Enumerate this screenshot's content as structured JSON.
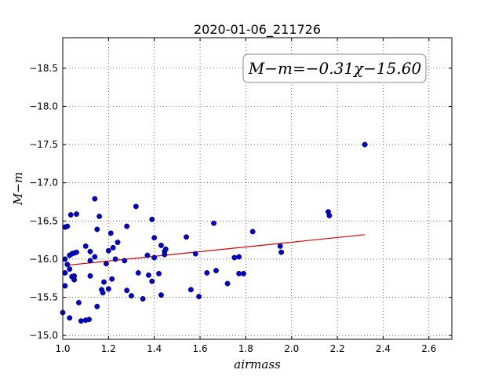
{
  "chart_data": {
    "type": "scatter",
    "title": "2020-01-06_211726",
    "xlabel": "airmass",
    "ylabel": "M−m",
    "xlim": [
      1.0,
      2.7
    ],
    "ylim": [
      -18.9,
      -14.95
    ],
    "y_inverted": true,
    "grid": true,
    "grid_style": "dotted",
    "x_ticks": [
      1.0,
      1.2,
      1.4,
      1.6,
      1.8,
      2.0,
      2.2,
      2.4,
      2.6
    ],
    "x_tick_labels": [
      "1.0",
      "1.2",
      "1.4",
      "1.6",
      "1.8",
      "2.0",
      "2.2",
      "2.4",
      "2.6"
    ],
    "y_ticks": [
      -15.0,
      -15.5,
      -16.0,
      -16.5,
      -17.0,
      -17.5,
      -18.0,
      -18.5
    ],
    "y_tick_labels": [
      "−15.0",
      "−15.5",
      "−16.0",
      "−16.5",
      "−17.0",
      "−17.5",
      "−18.0",
      "−18.5"
    ],
    "annotation": "M−m=−0.31χ−15.60",
    "annotation_position": "top-right",
    "point_color": "#0000cc",
    "fit_color": "#dd0000",
    "series": [
      {
        "type": "scatter",
        "points": [
          [
            1.0,
            -15.3
          ],
          [
            1.01,
            -15.65
          ],
          [
            1.01,
            -15.82
          ],
          [
            1.01,
            -16.0
          ],
          [
            1.01,
            -16.42
          ],
          [
            1.02,
            -16.43
          ],
          [
            1.02,
            -15.93
          ],
          [
            1.03,
            -15.23
          ],
          [
            1.03,
            -15.87
          ],
          [
            1.03,
            -16.05
          ],
          [
            1.035,
            -16.58
          ],
          [
            1.04,
            -15.77
          ],
          [
            1.04,
            -16.07
          ],
          [
            1.05,
            -15.73
          ],
          [
            1.05,
            -15.78
          ],
          [
            1.05,
            -16.08
          ],
          [
            1.06,
            -16.09
          ],
          [
            1.06,
            -16.59
          ],
          [
            1.07,
            -15.43
          ],
          [
            1.08,
            -15.19
          ],
          [
            1.1,
            -15.2
          ],
          [
            1.1,
            -16.17
          ],
          [
            1.115,
            -15.21
          ],
          [
            1.12,
            -15.78
          ],
          [
            1.12,
            -15.98
          ],
          [
            1.12,
            -16.1
          ],
          [
            1.14,
            -16.03
          ],
          [
            1.14,
            -16.79
          ],
          [
            1.15,
            -15.38
          ],
          [
            1.15,
            -16.39
          ],
          [
            1.16,
            -16.56
          ],
          [
            1.17,
            -15.6
          ],
          [
            1.175,
            -15.56
          ],
          [
            1.18,
            -15.7
          ],
          [
            1.19,
            -15.94
          ],
          [
            1.2,
            -15.61
          ],
          [
            1.2,
            -16.11
          ],
          [
            1.21,
            -16.34
          ],
          [
            1.215,
            -15.74
          ],
          [
            1.22,
            -16.15
          ],
          [
            1.23,
            -16.0
          ],
          [
            1.24,
            -16.22
          ],
          [
            1.27,
            -15.98
          ],
          [
            1.28,
            -15.59
          ],
          [
            1.28,
            -16.43
          ],
          [
            1.3,
            -15.52
          ],
          [
            1.32,
            -16.69
          ],
          [
            1.33,
            -15.82
          ],
          [
            1.35,
            -15.48
          ],
          [
            1.37,
            -16.05
          ],
          [
            1.375,
            -15.79
          ],
          [
            1.39,
            -15.71
          ],
          [
            1.39,
            -16.52
          ],
          [
            1.4,
            -16.02
          ],
          [
            1.4,
            -16.28
          ],
          [
            1.42,
            -15.81
          ],
          [
            1.43,
            -15.53
          ],
          [
            1.43,
            -16.18
          ],
          [
            1.445,
            -16.06
          ],
          [
            1.445,
            -16.1
          ],
          [
            1.45,
            -16.13
          ],
          [
            1.54,
            -16.29
          ],
          [
            1.56,
            -15.6
          ],
          [
            1.58,
            -16.07
          ],
          [
            1.595,
            -15.51
          ],
          [
            1.63,
            -15.82
          ],
          [
            1.66,
            -16.47
          ],
          [
            1.67,
            -15.85
          ],
          [
            1.72,
            -15.68
          ],
          [
            1.75,
            -16.02
          ],
          [
            1.77,
            -15.81
          ],
          [
            1.77,
            -16.03
          ],
          [
            1.79,
            -15.81
          ],
          [
            1.83,
            -16.36
          ],
          [
            1.95,
            -16.17
          ],
          [
            1.955,
            -16.09
          ],
          [
            2.16,
            -16.62
          ],
          [
            2.165,
            -16.57
          ],
          [
            2.32,
            -17.5
          ]
        ]
      },
      {
        "type": "line",
        "points": [
          [
            1.02,
            -15.92
          ],
          [
            2.32,
            -16.32
          ]
        ]
      }
    ]
  }
}
